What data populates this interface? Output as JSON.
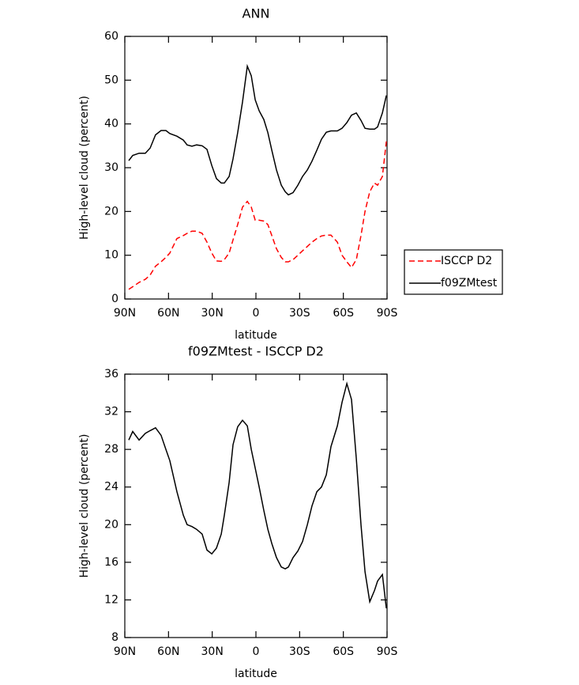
{
  "chart_data": [
    {
      "type": "line",
      "title": "ANN",
      "x_label": "latitude",
      "y_label": "High-level cloud (percent)",
      "x": [
        87.3,
        84.6,
        80.2,
        75.9,
        72.6,
        68.9,
        65.1,
        61.8,
        59.1,
        54.2,
        49.8,
        47.2,
        43.9,
        40.7,
        36.9,
        33.6,
        30.3,
        27.1,
        23.8,
        21.7,
        18.4,
        15.7,
        12.5,
        9.2,
        5.9,
        3.2,
        0.5,
        -2.2,
        -5.4,
        -8.2,
        -10.9,
        -14.1,
        -17.4,
        -20.1,
        -22.3,
        -25.5,
        -28.8,
        -32.0,
        -35.3,
        -38.5,
        -41.8,
        -45.0,
        -48.3,
        -51.5,
        -55.9,
        -59.1,
        -62.4,
        -65.6,
        -68.9,
        -72.1,
        -74.9,
        -78.1,
        -81.4,
        -83.5,
        -86.8,
        -89.5
      ],
      "series": [
        {
          "name": "ISCCP D2",
          "color": "#ff0000",
          "dashed": true,
          "values": [
            2.2,
            2.8,
            3.8,
            4.5,
            5.5,
            7.5,
            8.5,
            9.5,
            10.5,
            13.8,
            14.5,
            15.0,
            15.5,
            15.5,
            15.0,
            13.0,
            10.5,
            8.7,
            8.6,
            9.0,
            10.5,
            13.5,
            17.0,
            21.0,
            22.3,
            21.0,
            18.0,
            18.0,
            17.8,
            17.0,
            14.5,
            11.5,
            9.5,
            8.5,
            8.5,
            9.0,
            10.0,
            11.0,
            12.0,
            13.0,
            13.8,
            14.4,
            14.6,
            14.6,
            13.0,
            10.0,
            8.5,
            7.2,
            9.0,
            14.5,
            20.0,
            24.5,
            26.5,
            26.0,
            28.0,
            36.0
          ]
        },
        {
          "name": "f09ZMtest",
          "color": "#000000",
          "dashed": false,
          "values": [
            31.6,
            32.8,
            33.3,
            33.3,
            34.5,
            37.5,
            38.5,
            38.5,
            37.8,
            37.2,
            36.3,
            35.2,
            34.9,
            35.2,
            35.0,
            34.2,
            30.5,
            27.5,
            26.5,
            26.5,
            28.0,
            32.0,
            38.0,
            45.0,
            53.2,
            51.0,
            45.5,
            43.0,
            41.0,
            38.0,
            34.0,
            29.5,
            26.0,
            24.5,
            23.8,
            24.3,
            26.0,
            28.0,
            29.5,
            31.5,
            34.0,
            36.5,
            38.1,
            38.4,
            38.4,
            39.0,
            40.3,
            42.0,
            42.5,
            40.8,
            39.0,
            38.8,
            38.8,
            39.3,
            42.5,
            46.5
          ]
        }
      ],
      "xlim": [
        90,
        -90
      ],
      "xticks": [
        {
          "value": 90,
          "label": "90N"
        },
        {
          "value": 60,
          "label": "60N"
        },
        {
          "value": 30,
          "label": "30N"
        },
        0,
        {
          "value": -30,
          "label": "30S"
        },
        {
          "value": -60,
          "label": "60S"
        },
        {
          "value": -90,
          "label": "90S"
        }
      ],
      "ylim": [
        0,
        60
      ],
      "yticks": [
        0,
        10,
        20,
        30,
        40,
        50,
        60
      ],
      "legend": "right"
    },
    {
      "type": "line",
      "title": "f09ZMtest - ISCCP D2",
      "x_label": "latitude",
      "y_label": "High-level cloud (percent)",
      "x": [
        87.3,
        84.6,
        80.2,
        75.9,
        72.6,
        68.9,
        65.1,
        61.8,
        59.1,
        54.2,
        49.8,
        47.2,
        43.9,
        40.7,
        36.9,
        33.6,
        30.3,
        27.1,
        23.8,
        21.7,
        18.4,
        15.7,
        12.5,
        9.2,
        5.9,
        3.2,
        0.5,
        -2.2,
        -5.4,
        -8.2,
        -10.9,
        -14.1,
        -17.4,
        -20.1,
        -22.3,
        -25.5,
        -28.8,
        -32.0,
        -35.3,
        -38.5,
        -41.8,
        -45.0,
        -48.3,
        -51.5,
        -55.9,
        -59.1,
        -62.4,
        -65.6,
        -68.9,
        -72.1,
        -74.9,
        -78.1,
        -81.4,
        -83.5,
        -86.8,
        -89.5
      ],
      "color": "#000000",
      "values": [
        29.0,
        29.9,
        29.0,
        29.7,
        30.0,
        30.3,
        29.5,
        28.0,
        26.8,
        23.5,
        21.0,
        20.0,
        19.8,
        19.5,
        19.0,
        17.3,
        16.9,
        17.5,
        19.0,
        21.0,
        24.5,
        28.5,
        30.4,
        31.1,
        30.5,
        28.0,
        26.0,
        24.0,
        21.5,
        19.5,
        18.0,
        16.5,
        15.5,
        15.3,
        15.5,
        16.5,
        17.2,
        18.2,
        20.0,
        22.0,
        23.5,
        24.0,
        25.3,
        28.3,
        30.5,
        33.0,
        35.0,
        33.3,
        27.0,
        20.0,
        15.0,
        11.8,
        13.0,
        14.0,
        14.7,
        11.1
      ],
      "xlim": [
        90,
        -90
      ],
      "xticks": [
        {
          "value": 90,
          "label": "90N"
        },
        {
          "value": 60,
          "label": "60N"
        },
        {
          "value": 30,
          "label": "30N"
        },
        0,
        {
          "value": -30,
          "label": "30S"
        },
        {
          "value": -60,
          "label": "60S"
        },
        {
          "value": -90,
          "label": "90S"
        }
      ],
      "ylim": [
        8,
        36
      ],
      "yticks": [
        8,
        12,
        16,
        20,
        24,
        28,
        32,
        36
      ]
    }
  ]
}
